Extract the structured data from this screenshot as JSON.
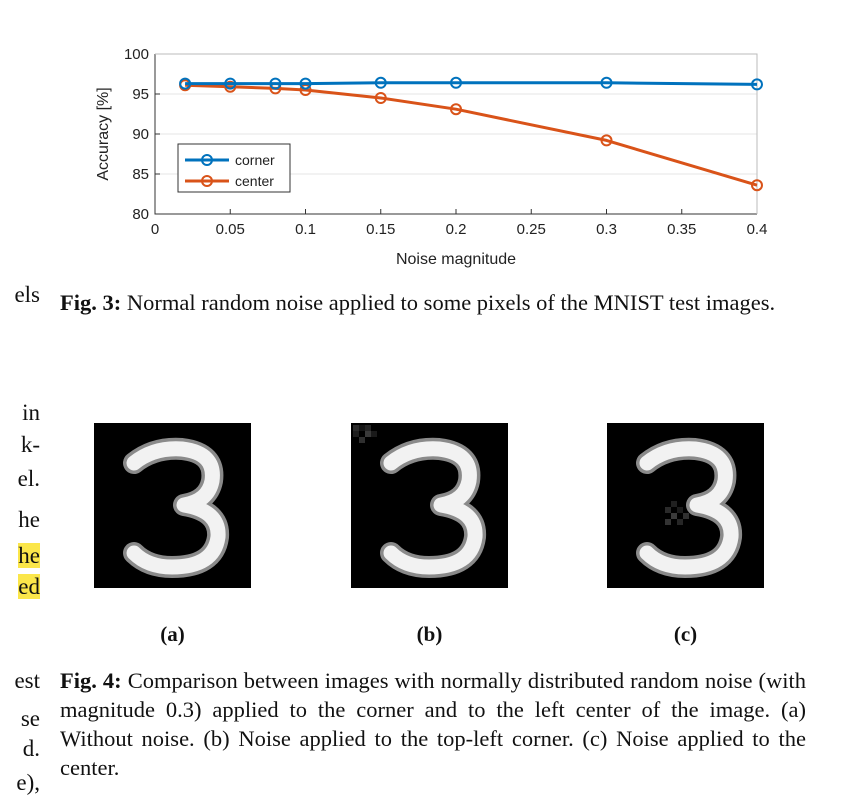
{
  "left_fragments": [
    "els",
    "in",
    "k-",
    "el.",
    "he",
    "he",
    "ed",
    "est",
    "se",
    "d.",
    "e),"
  ],
  "left_highlight_flags": [
    false,
    false,
    false,
    false,
    false,
    true,
    true,
    false,
    false,
    false,
    false
  ],
  "fig3": {
    "label": "Fig. 3:",
    "text": " Normal random noise applied to some pixels of the MNIST test images."
  },
  "fig4": {
    "label": "Fig. 4:",
    "text": " Comparison between images with normally distributed random noise (with magnitude 0.3) applied to the corner and to the left center of the image. (a) Without noise. (b) Noise applied to the top-left corner. (c) Noise applied to the center."
  },
  "subfigures": [
    {
      "label": "(a)",
      "variant": "clean"
    },
    {
      "label": "(b)",
      "variant": "corner-noise"
    },
    {
      "label": "(c)",
      "variant": "center-noise"
    }
  ],
  "chart_data": {
    "type": "line",
    "xlabel": "Noise magnitude",
    "ylabel": "Accuracy [%]",
    "xlim": [
      0,
      0.4
    ],
    "ylim": [
      80,
      100
    ],
    "xticks": [
      0,
      0.05,
      0.1,
      0.15,
      0.2,
      0.25,
      0.3,
      0.35,
      0.4
    ],
    "xtick_labels": [
      "0",
      "0.05",
      "0.1",
      "0.15",
      "0.2",
      "0.25",
      "0.3",
      "0.35",
      "0.4"
    ],
    "yticks": [
      80,
      85,
      90,
      95,
      100
    ],
    "ytick_labels": [
      "80",
      "85",
      "90",
      "95",
      "100"
    ],
    "grid": "horizontal",
    "legend_position": "lower-left",
    "x": [
      0.02,
      0.05,
      0.08,
      0.1,
      0.15,
      0.2,
      0.3,
      0.4
    ],
    "series": [
      {
        "name": "corner",
        "color": "#0072BD",
        "values": [
          96.3,
          96.3,
          96.3,
          96.3,
          96.4,
          96.4,
          96.4,
          96.2
        ]
      },
      {
        "name": "center",
        "color": "#D95319",
        "values": [
          96.1,
          95.9,
          95.7,
          95.5,
          94.5,
          93.1,
          89.2,
          83.6
        ]
      }
    ]
  }
}
